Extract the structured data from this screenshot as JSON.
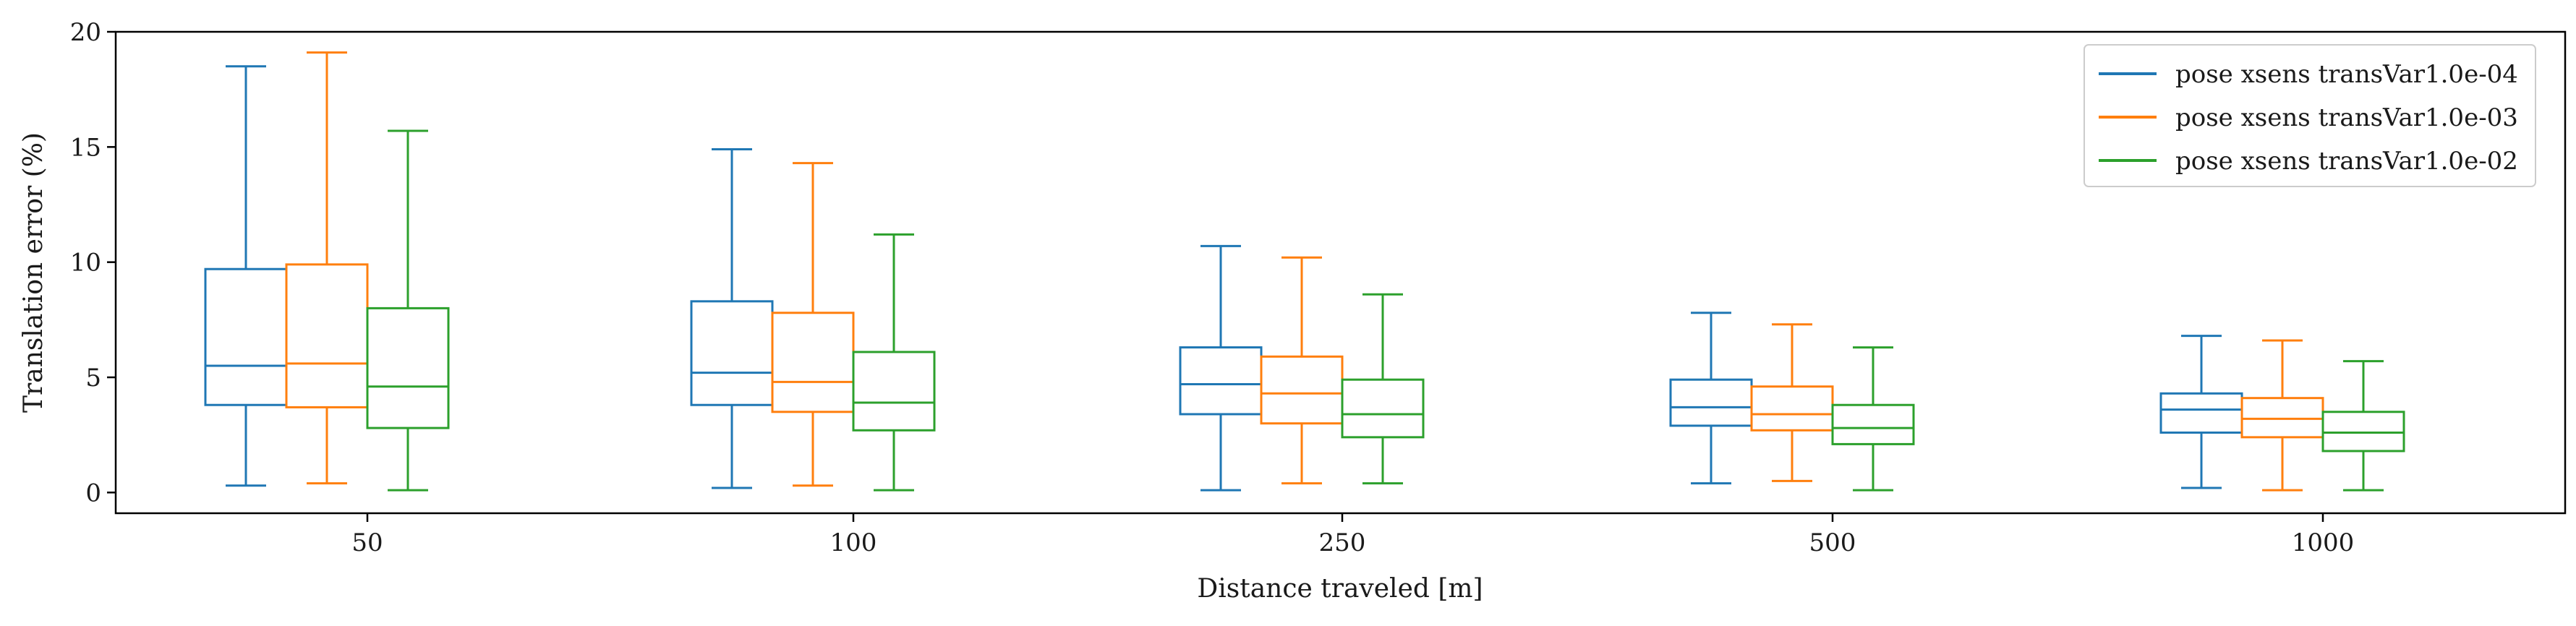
{
  "chart_data": {
    "type": "box",
    "title": "",
    "xlabel": "Distance traveled [m]",
    "ylabel": "Translation error (%)",
    "ylim": [
      -0.9,
      20
    ],
    "yticks": [
      0,
      5,
      10,
      15,
      20
    ],
    "yticklabels": [
      "0",
      "5",
      "10",
      "15",
      "20"
    ],
    "categories": [
      "50",
      "100",
      "250",
      "500",
      "1000"
    ],
    "legend_position": "top-right",
    "grid": false,
    "series": [
      {
        "name": "pose xsens transVar1.0e-04",
        "color": "#1f77b4",
        "boxes": [
          {
            "whislo": 0.3,
            "q1": 3.8,
            "med": 5.5,
            "q3": 9.7,
            "whishi": 18.5
          },
          {
            "whislo": 0.2,
            "q1": 3.8,
            "med": 5.2,
            "q3": 8.3,
            "whishi": 14.9
          },
          {
            "whislo": 0.1,
            "q1": 3.4,
            "med": 4.7,
            "q3": 6.3,
            "whishi": 10.7
          },
          {
            "whislo": 0.4,
            "q1": 2.9,
            "med": 3.7,
            "q3": 4.9,
            "whishi": 7.8
          },
          {
            "whislo": 0.2,
            "q1": 2.6,
            "med": 3.6,
            "q3": 4.3,
            "whishi": 6.8
          }
        ]
      },
      {
        "name": "pose xsens transVar1.0e-03",
        "color": "#ff7f0e",
        "boxes": [
          {
            "whislo": 0.4,
            "q1": 3.7,
            "med": 5.6,
            "q3": 9.9,
            "whishi": 19.1
          },
          {
            "whislo": 0.3,
            "q1": 3.5,
            "med": 4.8,
            "q3": 7.8,
            "whishi": 14.3
          },
          {
            "whislo": 0.4,
            "q1": 3.0,
            "med": 4.3,
            "q3": 5.9,
            "whishi": 10.2
          },
          {
            "whislo": 0.5,
            "q1": 2.7,
            "med": 3.4,
            "q3": 4.6,
            "whishi": 7.3
          },
          {
            "whislo": 0.1,
            "q1": 2.4,
            "med": 3.2,
            "q3": 4.1,
            "whishi": 6.6
          }
        ]
      },
      {
        "name": "pose xsens transVar1.0e-02",
        "color": "#2ca02c",
        "boxes": [
          {
            "whislo": 0.1,
            "q1": 2.8,
            "med": 4.6,
            "q3": 8.0,
            "whishi": 15.7
          },
          {
            "whislo": 0.1,
            "q1": 2.7,
            "med": 3.9,
            "q3": 6.1,
            "whishi": 11.2
          },
          {
            "whislo": 0.4,
            "q1": 2.4,
            "med": 3.4,
            "q3": 4.9,
            "whishi": 8.6
          },
          {
            "whislo": 0.1,
            "q1": 2.1,
            "med": 2.8,
            "q3": 3.8,
            "whishi": 6.3
          },
          {
            "whislo": 0.1,
            "q1": 1.8,
            "med": 2.6,
            "q3": 3.5,
            "whishi": 5.7
          }
        ]
      }
    ]
  }
}
